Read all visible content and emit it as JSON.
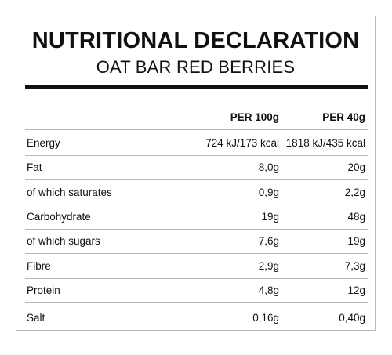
{
  "label": {
    "title": "NUTRITIONAL DECLARATION",
    "subtitle": "OAT BAR RED BERRIES",
    "columns": {
      "per100": "PER 100g",
      "per40": "PER 40g"
    },
    "rows": [
      {
        "nutrient": "Energy",
        "per100": "724 kJ/173 kcal",
        "per40": "1818 kJ/435 kcal"
      },
      {
        "nutrient": "Fat",
        "per100": "8,0g",
        "per40": "20g"
      },
      {
        "nutrient": "of which saturates",
        "per100": "0,9g",
        "per40": "2,2g"
      },
      {
        "nutrient": "Carbohydrate",
        "per100": "19g",
        "per40": "48g"
      },
      {
        "nutrient": "of which sugars",
        "per100": "7,6g",
        "per40": "19g"
      },
      {
        "nutrient": "Fibre",
        "per100": "2,9g",
        "per40": "7,3g"
      },
      {
        "nutrient": "Protein",
        "per100": "4,8g",
        "per40": "12g"
      },
      {
        "nutrient": "Salt",
        "per100": "0,16g",
        "per40": "0,40g"
      }
    ]
  }
}
